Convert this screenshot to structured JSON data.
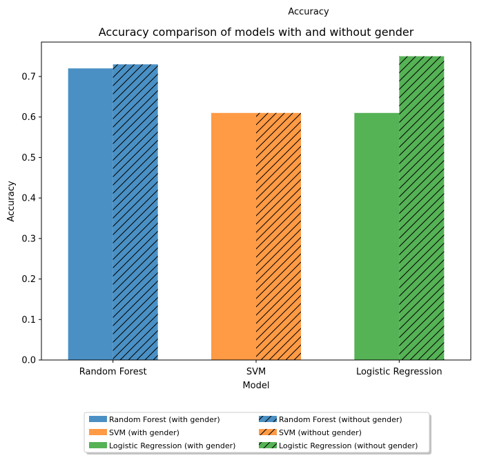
{
  "chart_data": {
    "type": "bar",
    "suptitle": "Accuracy",
    "title": "Accuracy comparison of models with and without gender",
    "xlabel": "Model",
    "ylabel": "Accuracy",
    "ylim": [
      0,
      0.785
    ],
    "yticks": [
      "0.0",
      "0.1",
      "0.2",
      "0.3",
      "0.4",
      "0.5",
      "0.6",
      "0.7"
    ],
    "categories": [
      "Random Forest",
      "SVM",
      "Logistic Regression"
    ],
    "series": [
      {
        "name": "with gender",
        "values": [
          0.72,
          0.61,
          0.61
        ],
        "hatch": false
      },
      {
        "name": "without gender",
        "values": [
          0.73,
          0.61,
          0.75
        ],
        "hatch": true
      }
    ],
    "colors": [
      "#4a90c4",
      "#ff9a45",
      "#55b255"
    ],
    "legend": {
      "placement": "bottom-center",
      "columns": 2,
      "entries": [
        {
          "label": "Random Forest (with gender)",
          "color": "#4a90c4",
          "hatch": false
        },
        {
          "label": "Random Forest (without gender)",
          "color": "#4a90c4",
          "hatch": true
        },
        {
          "label": "SVM (with gender)",
          "color": "#ff9a45",
          "hatch": false
        },
        {
          "label": "SVM (without gender)",
          "color": "#ff9a45",
          "hatch": true
        },
        {
          "label": "Logistic Regression (with gender)",
          "color": "#55b255",
          "hatch": false
        },
        {
          "label": "Logistic Regression (without gender)",
          "color": "#55b255",
          "hatch": true
        }
      ]
    }
  }
}
